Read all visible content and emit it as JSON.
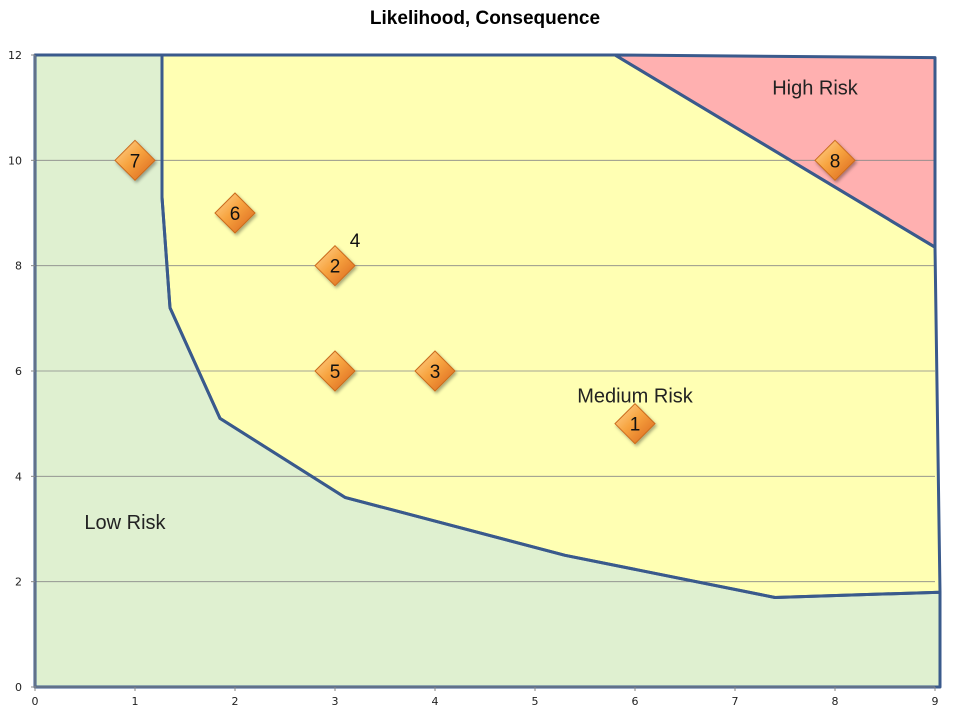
{
  "chart_data": {
    "type": "scatter",
    "title": "Likelihood, Consequence",
    "xlabel": "",
    "ylabel": "",
    "xlim": [
      0,
      9
    ],
    "ylim": [
      0,
      12
    ],
    "x_ticks": [
      "0",
      "1",
      "2",
      "3",
      "4",
      "5",
      "6",
      "7",
      "8",
      "9"
    ],
    "y_ticks": [
      "0",
      "2",
      "4",
      "6",
      "8",
      "10",
      "12"
    ],
    "grid": "horizontal",
    "points": [
      {
        "label": "7",
        "x": 1,
        "y": 10
      },
      {
        "label": "6",
        "x": 2,
        "y": 9
      },
      {
        "label": "2",
        "x": 3,
        "y": 8
      },
      {
        "label": "5",
        "x": 3,
        "y": 6
      },
      {
        "label": "3",
        "x": 4,
        "y": 6
      },
      {
        "label": "1",
        "x": 6,
        "y": 5
      },
      {
        "label": "8",
        "x": 8,
        "y": 10
      }
    ],
    "annotations": [
      {
        "text": "4",
        "x": 3.2,
        "y": 8.35
      }
    ],
    "regions": [
      {
        "name": "Low Risk",
        "color": "#dff0d0",
        "label_pos": {
          "x": 0.9,
          "y": 3.0
        },
        "polygon": [
          [
            0,
            0
          ],
          [
            9.05,
            0
          ],
          [
            9.05,
            1.8
          ],
          [
            7.4,
            1.7
          ],
          [
            5.3,
            2.5
          ],
          [
            3.1,
            3.6
          ],
          [
            1.85,
            5.1
          ],
          [
            1.35,
            7.2
          ],
          [
            1.27,
            9.3
          ],
          [
            1.27,
            12
          ],
          [
            0,
            12
          ]
        ]
      },
      {
        "name": "Medium Risk",
        "color": "#ffffb3",
        "label_pos": {
          "x": 6.0,
          "y": 5.4
        },
        "polygon": [
          [
            1.27,
            12
          ],
          [
            5.8,
            12
          ],
          [
            9.0,
            8.35
          ],
          [
            9.05,
            1.8
          ],
          [
            7.4,
            1.7
          ],
          [
            5.3,
            2.5
          ],
          [
            3.1,
            3.6
          ],
          [
            1.85,
            5.1
          ],
          [
            1.35,
            7.2
          ],
          [
            1.27,
            9.3
          ]
        ]
      },
      {
        "name": "High Risk",
        "color": "#ffb0b0",
        "label_pos": {
          "x": 7.8,
          "y": 11.25
        },
        "polygon": [
          [
            5.8,
            12
          ],
          [
            9.0,
            11.95
          ],
          [
            9.0,
            8.35
          ]
        ]
      }
    ],
    "marker_color": "#f28c28",
    "boundary_color": "#3a5a8c",
    "gridline_color": "#888888"
  }
}
